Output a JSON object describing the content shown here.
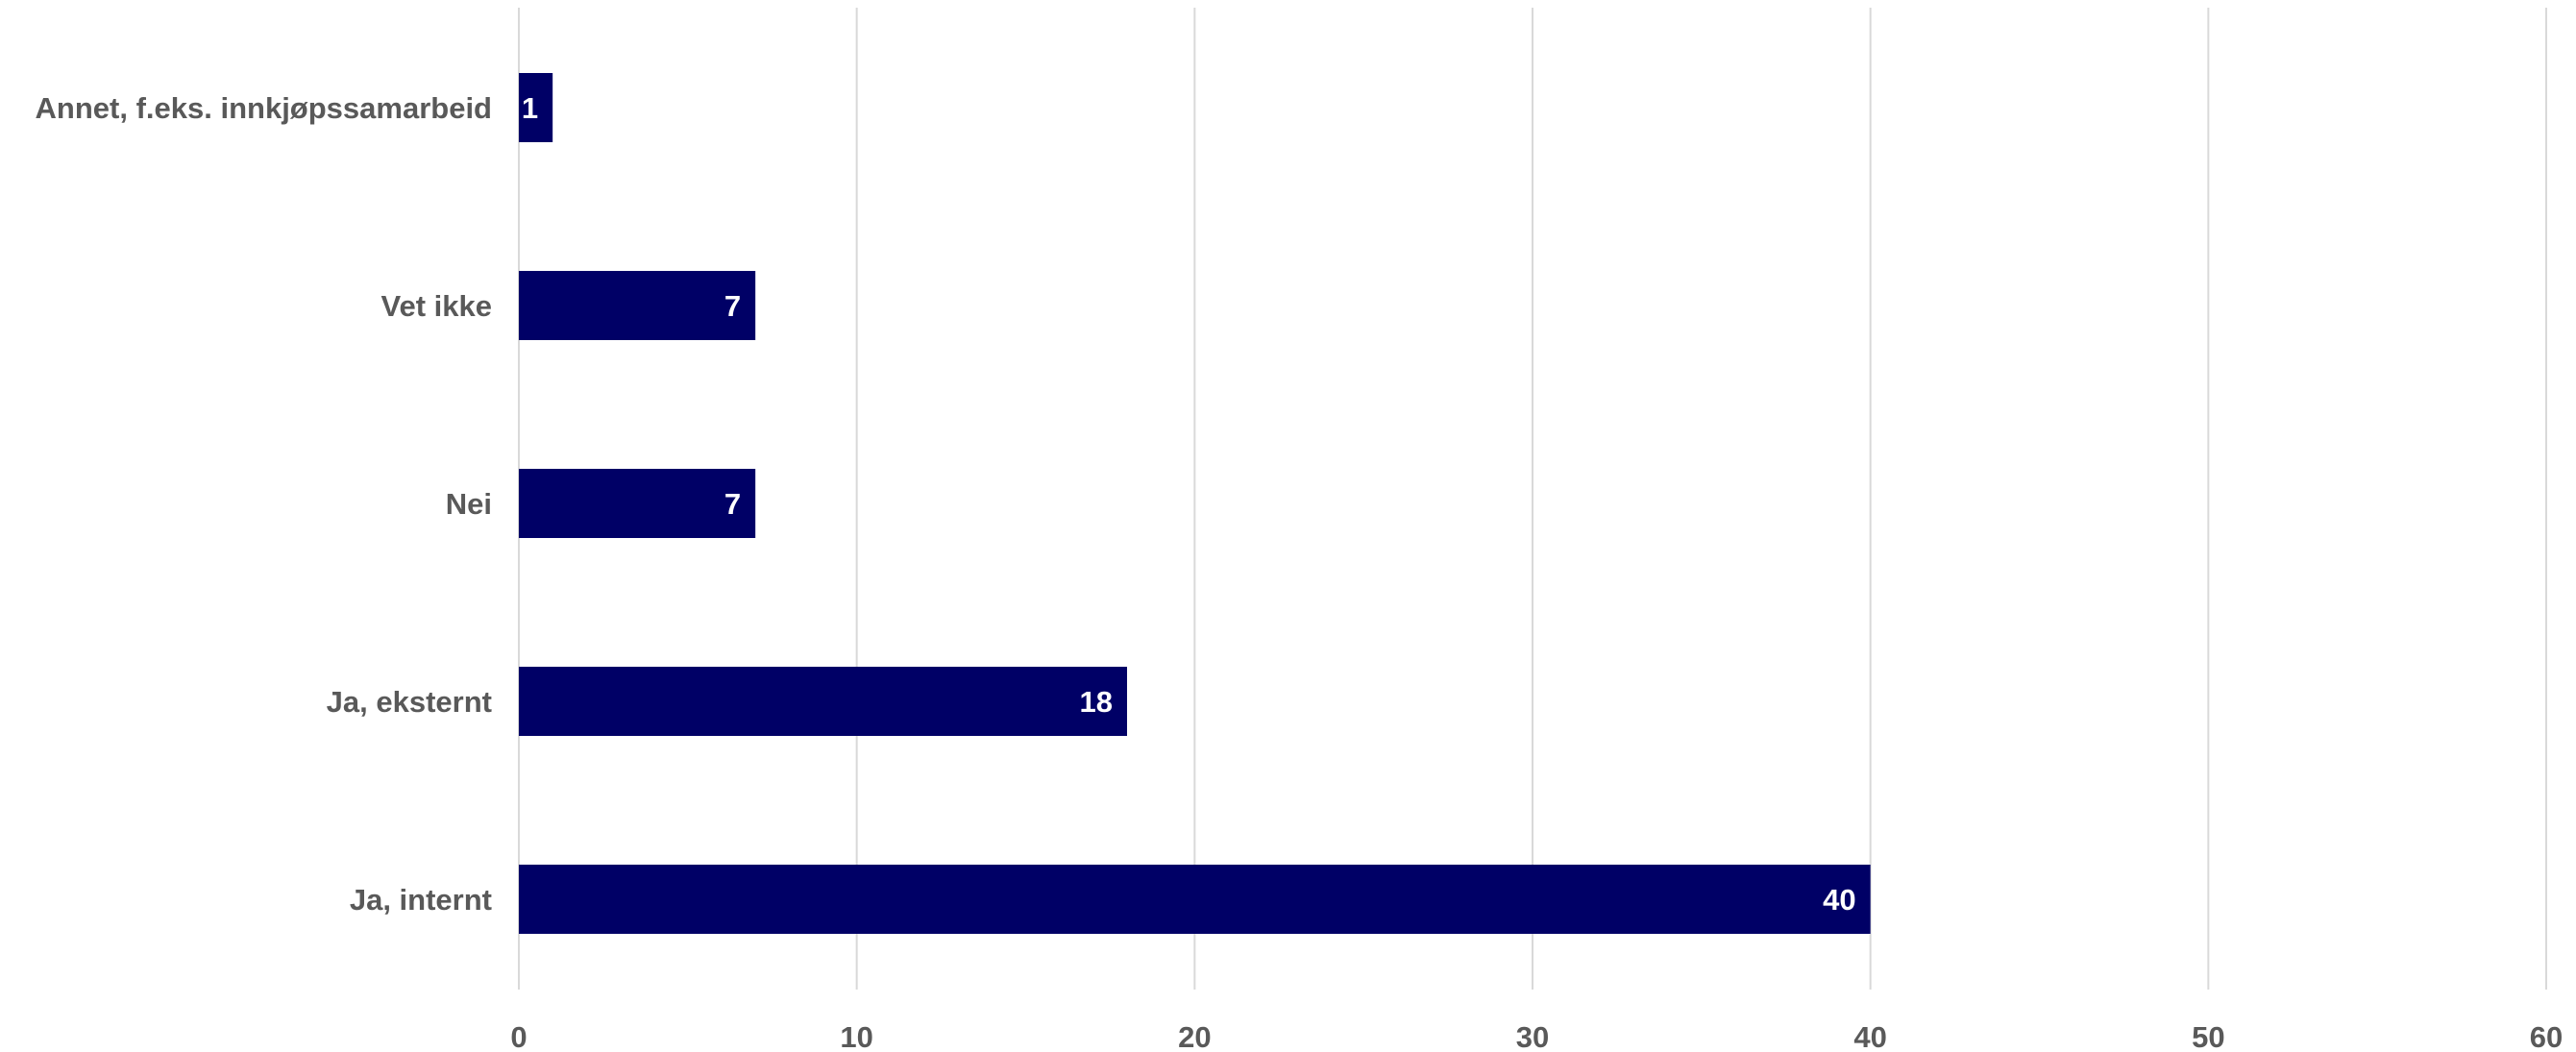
{
  "chart_data": {
    "type": "bar",
    "orientation": "horizontal",
    "categories": [
      "Annet, f.eks. innkjøpssamarbeid",
      "Vet ikke",
      "Nei",
      "Ja, eksternt",
      "Ja, internt"
    ],
    "values": [
      1,
      7,
      7,
      18,
      40
    ],
    "data_labels": [
      "1",
      "7",
      "7",
      "18",
      "40"
    ],
    "xlim": [
      0,
      60
    ],
    "x_ticks": [
      0,
      10,
      20,
      30,
      40,
      50,
      60
    ],
    "title": "",
    "xlabel": "",
    "ylabel": "",
    "grid": "vertical",
    "legend": "none",
    "bar_color": "#000066",
    "label_color": "#595959",
    "grid_color": "#d9d9d9"
  }
}
